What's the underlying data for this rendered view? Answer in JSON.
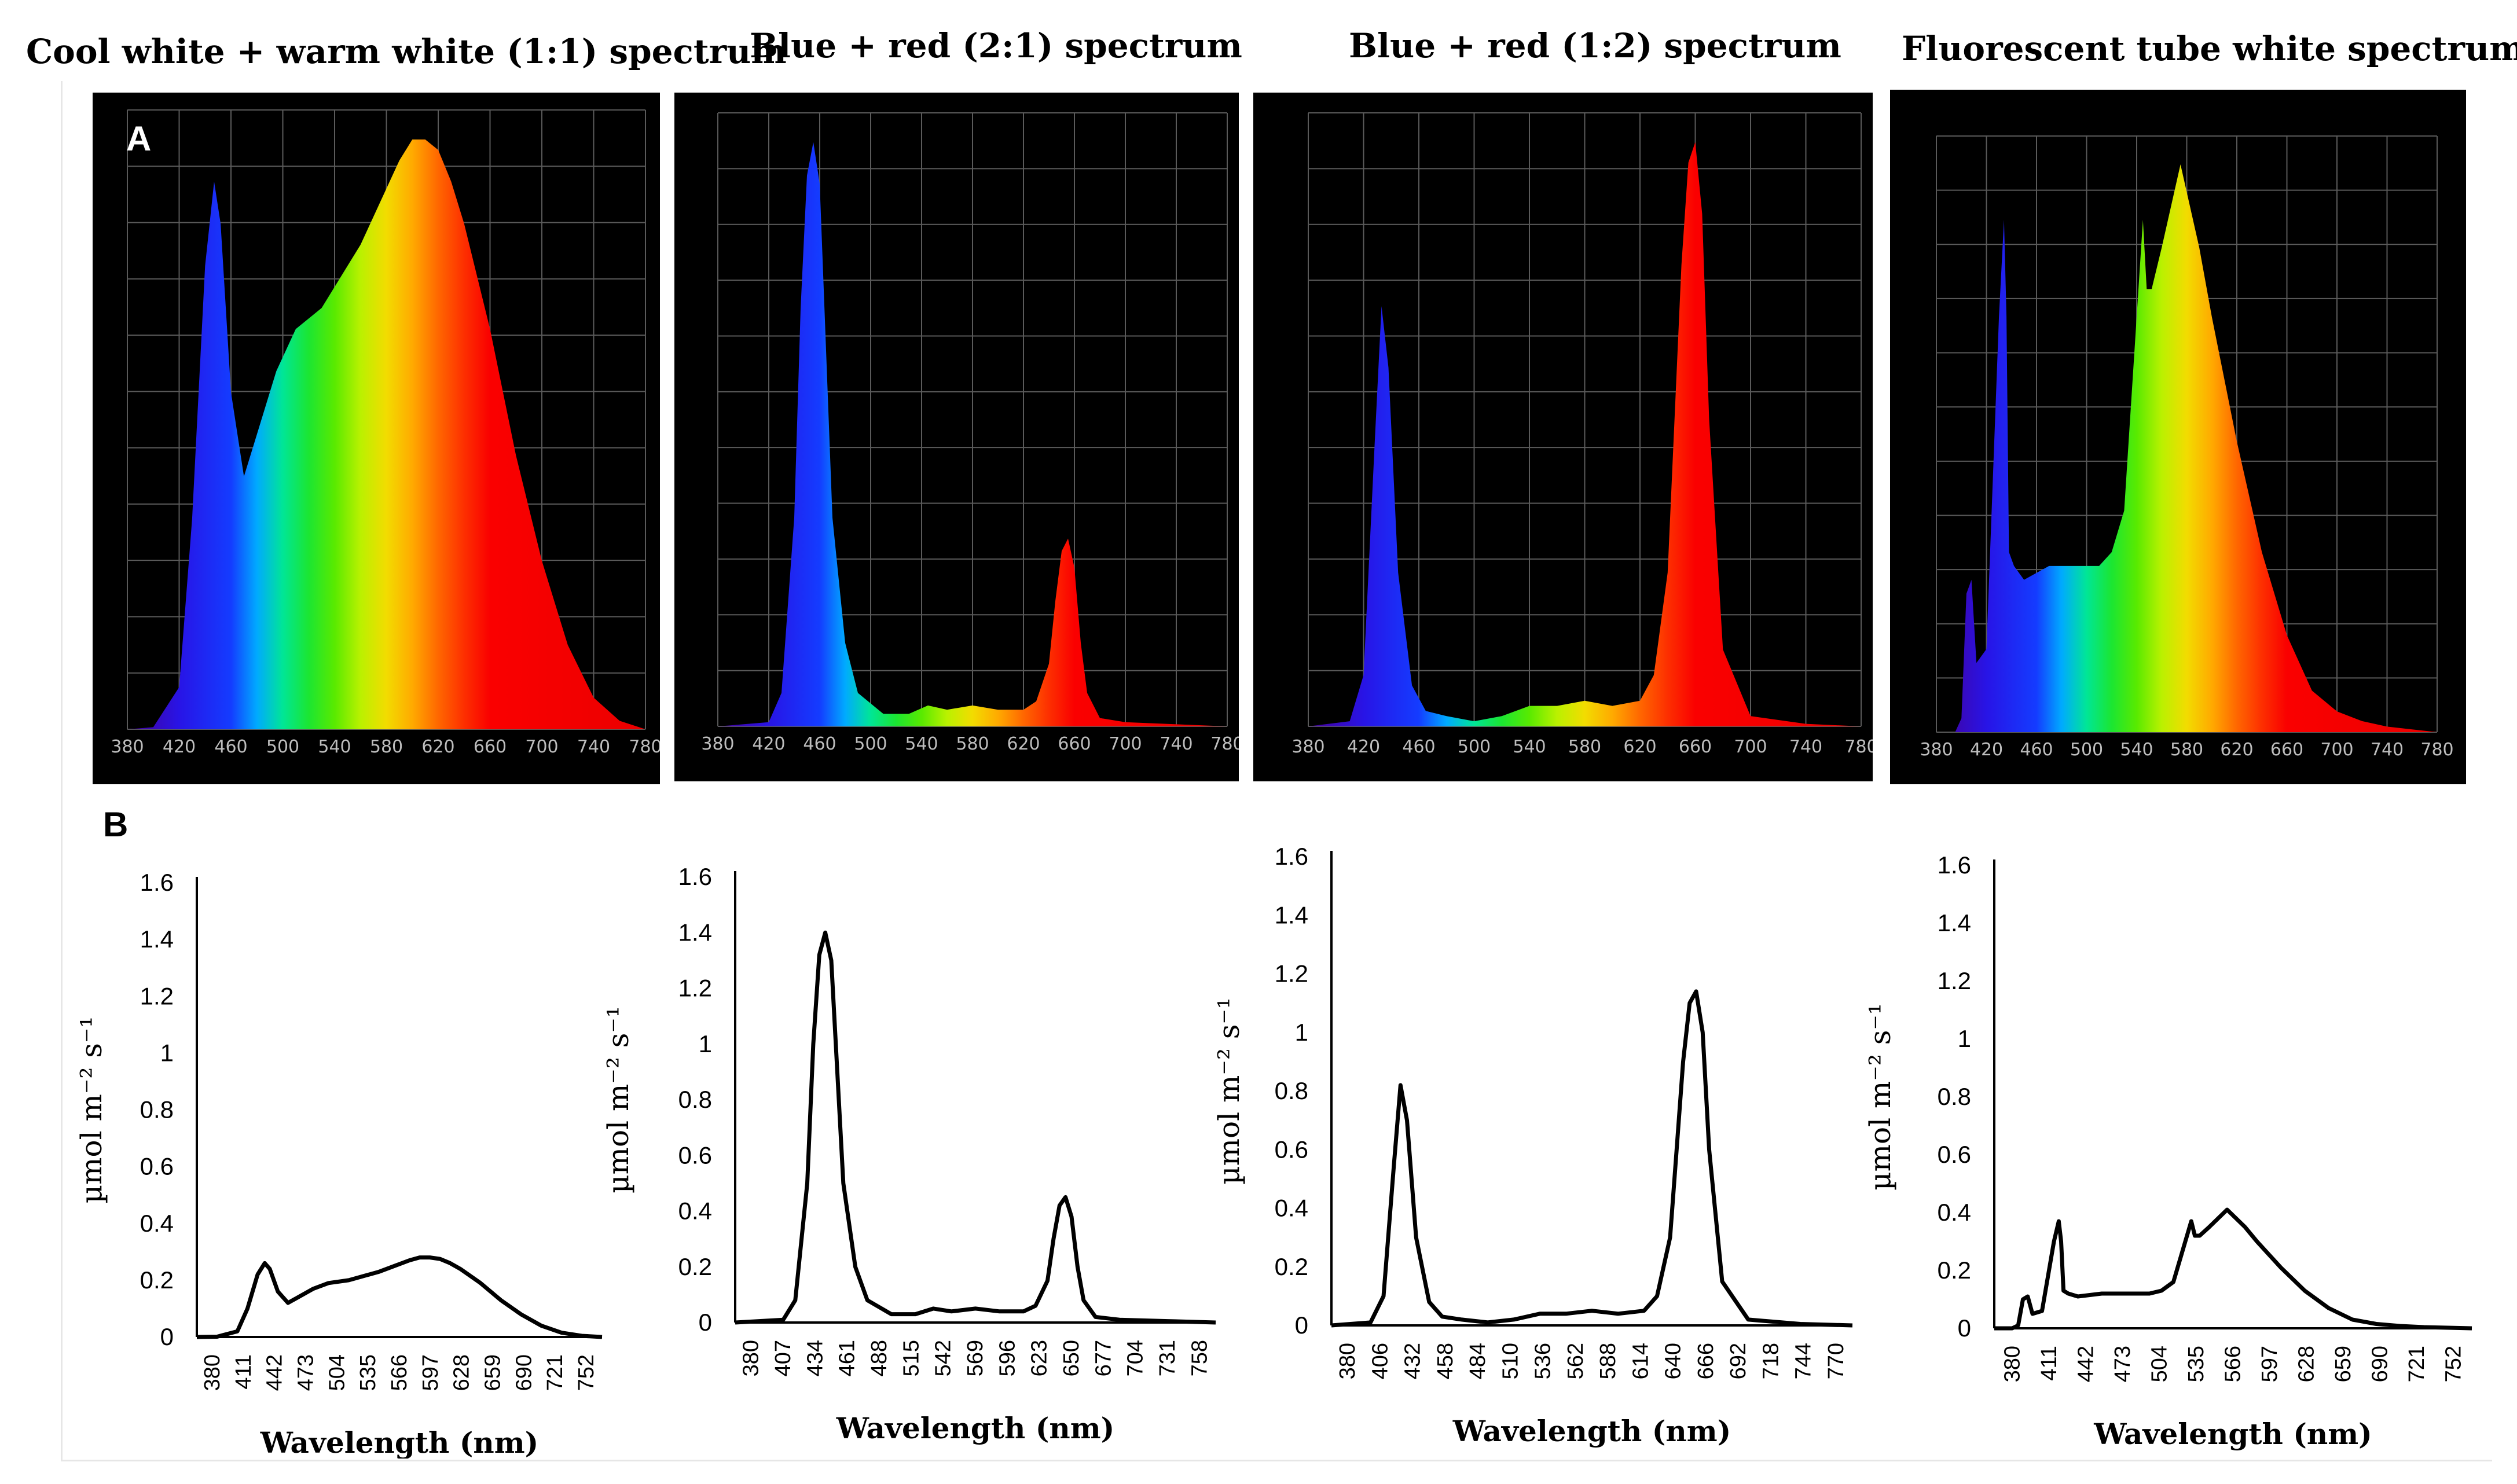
{
  "panel_labels": {
    "a": "A",
    "b": "B"
  },
  "colors": {
    "spectrum_background": "#000000",
    "grid": "#5a5a5a",
    "axis_text": "#bdbdbd",
    "line": "#000000"
  },
  "titles": [
    "Cool white + warm white (1:1) spectrum",
    "Blue + red (2:1) spectrum",
    "Blue + red (1:2) spectrum",
    "Fluorescent tube white spectrum"
  ],
  "spectrometer_panels": [
    {
      "x_ticks": [
        "380",
        "420",
        "460",
        "500",
        "540",
        "580",
        "620",
        "660",
        "700",
        "740",
        "780"
      ]
    },
    {
      "x_ticks": [
        "380",
        "420",
        "460",
        "500",
        "540",
        "580",
        "620",
        "660",
        "700",
        "740",
        "780"
      ]
    },
    {
      "x_ticks": [
        "380",
        "420",
        "460",
        "500",
        "540",
        "580",
        "620",
        "660",
        "700",
        "740",
        "780"
      ]
    },
    {
      "x_ticks": [
        "380",
        "420",
        "460",
        "500",
        "540",
        "580",
        "620",
        "660",
        "700",
        "740",
        "780"
      ]
    }
  ],
  "chart_data": [
    {
      "type": "line",
      "title": "Cool white + warm white (1:1) spectrum",
      "xlabel": "Wavelength (nm)",
      "ylabel": "µmol m⁻² s⁻¹",
      "ylim": [
        0,
        1.6
      ],
      "y_ticks": [
        "0",
        "0.2",
        "0.4",
        "0.6",
        "0.8",
        "1",
        "1.2",
        "1.4",
        "1.6"
      ],
      "x_ticks": [
        "380",
        "411",
        "442",
        "473",
        "504",
        "535",
        "566",
        "597",
        "628",
        "659",
        "690",
        "721",
        "752"
      ],
      "xlim": [
        380,
        780
      ],
      "x": [
        380,
        400,
        420,
        430,
        440,
        447,
        452,
        460,
        470,
        480,
        495,
        510,
        530,
        550,
        560,
        575,
        590,
        600,
        610,
        620,
        630,
        640,
        660,
        680,
        700,
        720,
        740,
        760,
        780
      ],
      "values": [
        0,
        0.001,
        0.02,
        0.1,
        0.22,
        0.26,
        0.24,
        0.16,
        0.12,
        0.14,
        0.17,
        0.19,
        0.2,
        0.22,
        0.23,
        0.25,
        0.27,
        0.28,
        0.28,
        0.275,
        0.26,
        0.24,
        0.19,
        0.13,
        0.08,
        0.04,
        0.015,
        0.004,
        0
      ]
    },
    {
      "type": "line",
      "title": "Blue + red (2:1) spectrum",
      "xlabel": "Wavelength (nm)",
      "ylabel": "µmol m⁻² s⁻¹",
      "ylim": [
        0,
        1.6
      ],
      "y_ticks": [
        "0",
        "0.2",
        "0.4",
        "0.6",
        "0.8",
        "1",
        "1.2",
        "1.4",
        "1.6"
      ],
      "x_ticks": [
        "380",
        "407",
        "434",
        "461",
        "488",
        "515",
        "542",
        "569",
        "596",
        "623",
        "650",
        "677",
        "704",
        "731",
        "758"
      ],
      "xlim": [
        380,
        780
      ],
      "x": [
        380,
        420,
        430,
        440,
        445,
        450,
        455,
        460,
        465,
        470,
        480,
        490,
        510,
        530,
        545,
        560,
        580,
        600,
        620,
        630,
        640,
        645,
        650,
        655,
        660,
        665,
        670,
        680,
        700,
        740,
        780
      ],
      "values": [
        0,
        0.01,
        0.08,
        0.5,
        1.0,
        1.32,
        1.4,
        1.3,
        0.9,
        0.5,
        0.2,
        0.08,
        0.03,
        0.03,
        0.05,
        0.04,
        0.05,
        0.04,
        0.04,
        0.06,
        0.15,
        0.3,
        0.42,
        0.45,
        0.38,
        0.2,
        0.08,
        0.02,
        0.01,
        0.005,
        0
      ]
    },
    {
      "type": "line",
      "title": "Blue + red (1:2) spectrum",
      "xlabel": "Wavelength (nm)",
      "ylabel": "µmol m⁻² s⁻¹",
      "ylim": [
        0,
        1.6
      ],
      "y_ticks": [
        "0",
        "0.2",
        "0.4",
        "0.6",
        "0.8",
        "1",
        "1.2",
        "1.4",
        "1.6"
      ],
      "x_ticks": [
        "380",
        "406",
        "432",
        "458",
        "484",
        "510",
        "536",
        "562",
        "588",
        "614",
        "640",
        "666",
        "692",
        "718",
        "744",
        "770"
      ],
      "xlim": [
        380,
        780
      ],
      "x": [
        380,
        410,
        420,
        428,
        433,
        438,
        445,
        455,
        465,
        480,
        500,
        520,
        540,
        560,
        580,
        600,
        620,
        630,
        640,
        645,
        650,
        655,
        660,
        665,
        670,
        680,
        700,
        740,
        780
      ],
      "values": [
        0,
        0.01,
        0.1,
        0.55,
        0.82,
        0.7,
        0.3,
        0.08,
        0.03,
        0.02,
        0.01,
        0.02,
        0.04,
        0.04,
        0.05,
        0.04,
        0.05,
        0.1,
        0.3,
        0.6,
        0.9,
        1.1,
        1.14,
        1.0,
        0.6,
        0.15,
        0.02,
        0.005,
        0
      ]
    },
    {
      "type": "line",
      "title": "Fluorescent tube white spectrum",
      "xlabel": "Wavelength (nm)",
      "ylabel": "µmol m⁻² s⁻¹",
      "ylim": [
        0,
        1.6
      ],
      "y_ticks": [
        "0",
        "0.2",
        "0.4",
        "0.6",
        "0.8",
        "1",
        "1.2",
        "1.4",
        "1.6"
      ],
      "x_ticks": [
        "380",
        "411",
        "442",
        "473",
        "504",
        "535",
        "566",
        "597",
        "628",
        "659",
        "690",
        "721",
        "752"
      ],
      "xlim": [
        380,
        780
      ],
      "x": [
        380,
        395,
        400,
        404,
        408,
        412,
        420,
        430,
        434,
        436,
        438,
        442,
        450,
        470,
        490,
        510,
        520,
        530,
        540,
        545,
        548,
        552,
        560,
        570,
        575,
        580,
        590,
        600,
        620,
        640,
        660,
        680,
        700,
        720,
        740,
        760,
        780
      ],
      "values": [
        0,
        0,
        0.01,
        0.1,
        0.11,
        0.05,
        0.06,
        0.3,
        0.37,
        0.3,
        0.13,
        0.12,
        0.11,
        0.12,
        0.12,
        0.12,
        0.13,
        0.16,
        0.3,
        0.37,
        0.32,
        0.32,
        0.35,
        0.39,
        0.41,
        0.39,
        0.35,
        0.3,
        0.21,
        0.13,
        0.07,
        0.03,
        0.015,
        0.008,
        0.004,
        0.002,
        0
      ]
    }
  ]
}
